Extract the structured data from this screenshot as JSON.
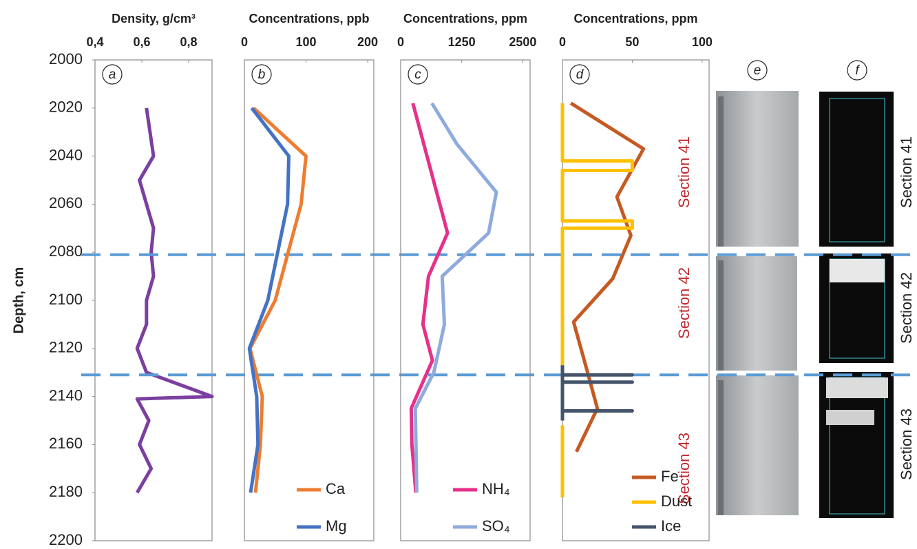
{
  "chart_data": [
    {
      "type": "line",
      "panel": "a",
      "title": "Density, g/cm³",
      "ylabel": "Depth, cm",
      "xlim": [
        0.4,
        0.9
      ],
      "xticks": [
        {
          "value": 0.4,
          "label": "0,4"
        },
        {
          "value": 0.6,
          "label": "0,6"
        },
        {
          "value": 0.8,
          "label": "0,8"
        }
      ],
      "ylim": [
        2000,
        2200
      ],
      "yticks": [
        2000,
        2020,
        2040,
        2060,
        2080,
        2100,
        2120,
        2140,
        2160,
        2180,
        2200
      ],
      "hlines": [
        2081,
        2131
      ],
      "series": [
        {
          "color": "#7b3fa0",
          "y": [
            2020,
            2040,
            2050,
            2070,
            2080,
            2090,
            2100,
            2110,
            2120,
            2130,
            2140,
            2141,
            2150,
            2160,
            2170,
            2180
          ],
          "values": [
            0.62,
            0.65,
            0.59,
            0.65,
            0.64,
            0.65,
            0.62,
            0.62,
            0.58,
            0.62,
            0.9,
            0.58,
            0.63,
            0.59,
            0.64,
            0.58
          ]
        }
      ]
    },
    {
      "type": "line",
      "panel": "b",
      "title": "Concentrations, ppb",
      "xlim": [
        0,
        210
      ],
      "xticks": [
        0,
        100,
        200
      ],
      "ylim": [
        2000,
        2200
      ],
      "legend": "lower right",
      "series": [
        {
          "name": "Ca",
          "color": "#ed7d31",
          "y": [
            2020,
            2040,
            2060,
            2100,
            2120,
            2140,
            2160,
            2180
          ],
          "values": [
            15,
            100,
            92,
            50,
            9,
            29,
            26,
            18
          ]
        },
        {
          "name": "Mg",
          "color": "#4472c4",
          "y": [
            2020,
            2040,
            2060,
            2100,
            2120,
            2140,
            2160,
            2180
          ],
          "values": [
            12,
            72,
            70,
            38,
            8,
            20,
            22,
            10
          ]
        }
      ]
    },
    {
      "type": "line",
      "panel": "c",
      "title": "Concentrations, ppm",
      "xlim": [
        0,
        2650
      ],
      "xticks": [
        0,
        1250,
        2500
      ],
      "ylim": [
        2000,
        2200
      ],
      "legend": "lower right",
      "series": [
        {
          "name": "NH₄",
          "color": "#e6318a",
          "y": [
            2018,
            2072,
            2090,
            2110,
            2125,
            2145,
            2160,
            2180
          ],
          "values": [
            250,
            960,
            570,
            455,
            650,
            215,
            230,
            310
          ]
        },
        {
          "name": "SO₄",
          "color": "#8faadc",
          "y": [
            2018,
            2035,
            2055,
            2072,
            2090,
            2110,
            2130,
            2145,
            2180
          ],
          "values": [
            640,
            1150,
            1960,
            1800,
            850,
            895,
            680,
            300,
            330
          ]
        }
      ]
    },
    {
      "type": "line",
      "panel": "d",
      "title": "Concentrations, ppm",
      "xlim": [
        0,
        105
      ],
      "xticks": [
        0,
        50,
        100
      ],
      "ylim": [
        2000,
        2200
      ],
      "legend": "lower right",
      "series": [
        {
          "name": "Fe",
          "color": "#c55a22",
          "y": [
            2018,
            2037,
            2057,
            2073,
            2091,
            2109,
            2130,
            2145,
            2163
          ],
          "values": [
            6,
            58,
            39,
            49,
            36,
            8,
            18,
            25,
            10
          ]
        },
        {
          "name": "Dust",
          "color": "#ffc000",
          "y": [
            2018,
            2042,
            2042,
            2046,
            2046,
            2067,
            2067,
            2070,
            2070,
            2127,
            null,
            2152,
            2182
          ],
          "values": [
            0,
            0,
            50,
            50,
            0,
            0,
            50,
            50,
            0,
            0,
            null,
            0,
            0
          ]
        },
        {
          "name": "Ice",
          "color": "#44546a",
          "y": [
            2127,
            2131,
            2131,
            2131,
            2134,
            2134,
            2134,
            2146,
            2146,
            2146,
            2150
          ],
          "values": [
            0,
            0,
            50,
            0,
            0,
            50,
            0,
            0,
            50,
            0,
            0
          ]
        }
      ]
    }
  ],
  "section_labels": [
    "Section 41",
    "Section 42",
    "Section 43"
  ],
  "photo_panels": [
    "e",
    "f"
  ]
}
